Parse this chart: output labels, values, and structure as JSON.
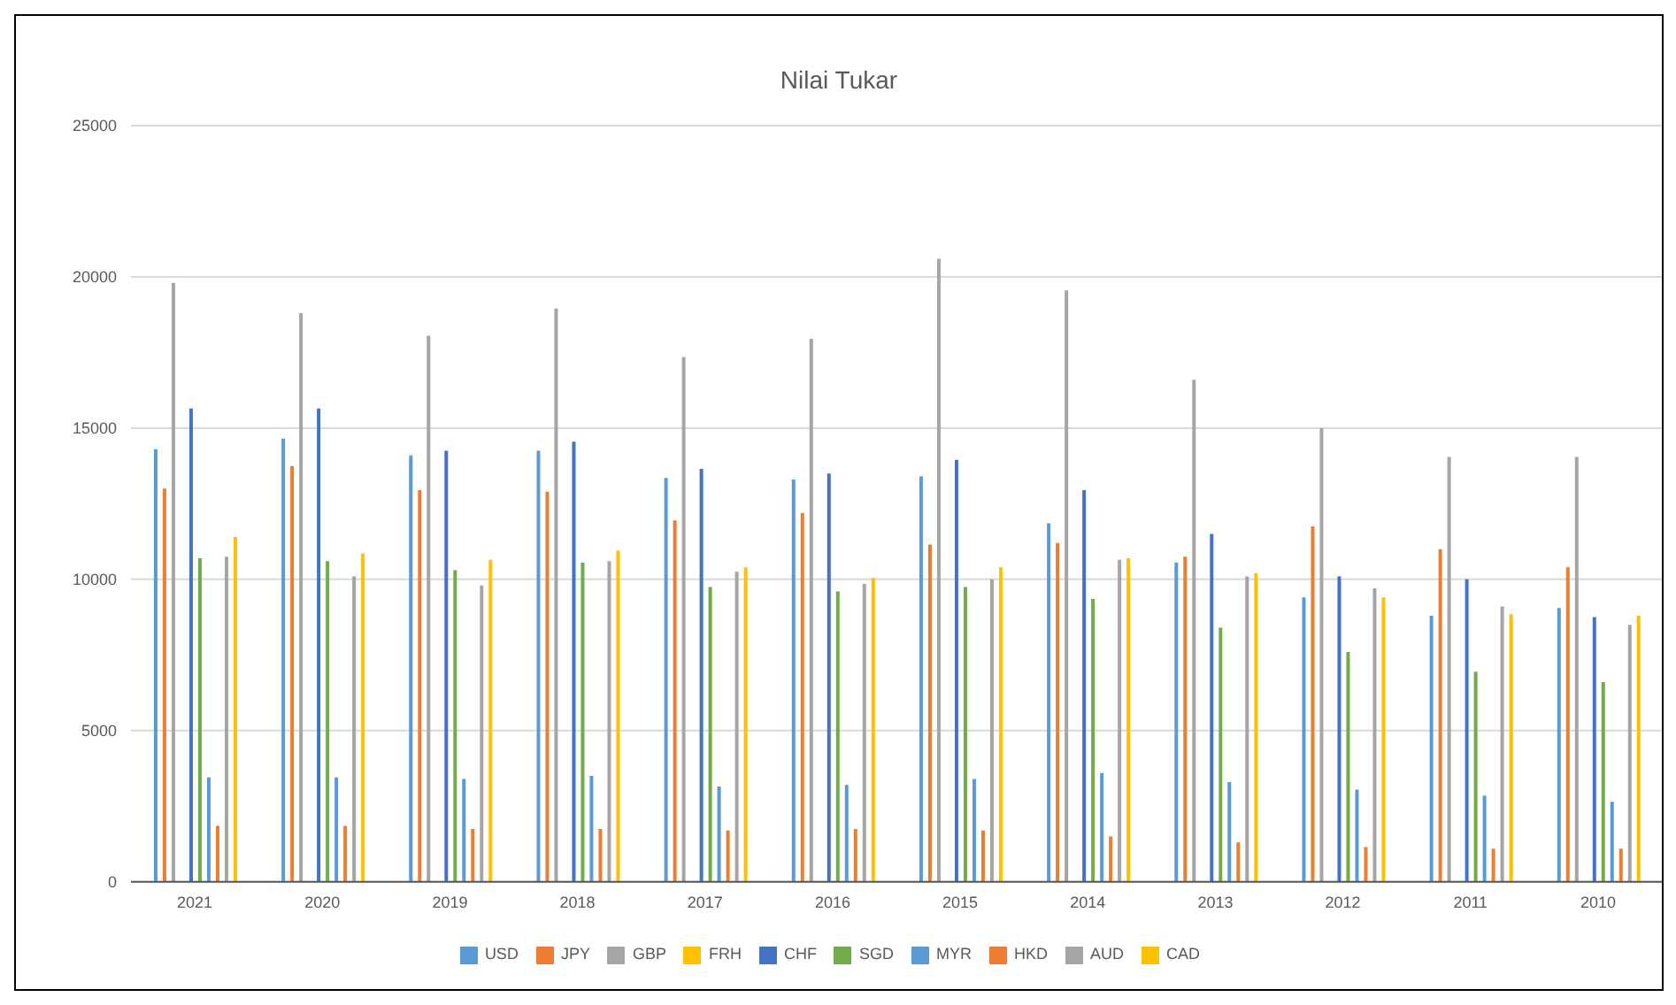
{
  "chart_data": {
    "type": "bar",
    "title": "Nilai Tukar",
    "categories": [
      "2021",
      "2020",
      "2019",
      "2018",
      "2017",
      "2016",
      "2015",
      "2014",
      "2013",
      "2012",
      "2011",
      "2010"
    ],
    "series": [
      {
        "name": "USD",
        "color": "#5b9bd5",
        "values": [
          14300,
          14650,
          14100,
          14250,
          13350,
          13300,
          13400,
          11850,
          10550,
          9400,
          8800,
          9050
        ]
      },
      {
        "name": "JPY",
        "color": "#ed7d31",
        "values": [
          13000,
          13750,
          12950,
          12900,
          11950,
          12200,
          11150,
          11200,
          10750,
          11750,
          11000,
          10400
        ]
      },
      {
        "name": "GBP",
        "color": "#a5a5a5",
        "values": [
          19800,
          18800,
          18050,
          18950,
          17350,
          17950,
          20600,
          19550,
          16600,
          15000,
          14050,
          14050
        ]
      },
      {
        "name": "FRH",
        "color": "#ffc000",
        "values": [
          null,
          null,
          null,
          null,
          null,
          null,
          null,
          null,
          null,
          null,
          null,
          null
        ]
      },
      {
        "name": "CHF",
        "color": "#4472c4",
        "values": [
          15650,
          15650,
          14250,
          14550,
          13650,
          13500,
          13950,
          12950,
          11500,
          10100,
          10000,
          8750
        ]
      },
      {
        "name": "SGD",
        "color": "#70ad47",
        "values": [
          10700,
          10600,
          10300,
          10550,
          9750,
          9600,
          9750,
          9350,
          8400,
          7600,
          6950,
          6600
        ]
      },
      {
        "name": "MYR",
        "color": "#5b9bd5",
        "values": [
          3450,
          3450,
          3400,
          3500,
          3150,
          3200,
          3400,
          3600,
          3300,
          3050,
          2850,
          2650
        ]
      },
      {
        "name": "HKD",
        "color": "#ed7d31",
        "values": [
          1850,
          1850,
          1750,
          1750,
          1700,
          1750,
          1700,
          1500,
          1300,
          1150,
          1100,
          1100
        ]
      },
      {
        "name": "AUD",
        "color": "#a5a5a5",
        "values": [
          10750,
          10100,
          9800,
          10600,
          10250,
          9850,
          10000,
          10650,
          10100,
          9700,
          9100,
          8500
        ]
      },
      {
        "name": "CAD",
        "color": "#ffc000",
        "values": [
          11400,
          10850,
          10650,
          10950,
          10400,
          10050,
          10400,
          10700,
          10200,
          9400,
          8850,
          8800
        ]
      }
    ],
    "ylim": [
      0,
      25000
    ],
    "yticks": [
      0,
      5000,
      10000,
      15000,
      20000,
      25000
    ],
    "grid": "y",
    "legend": "bottom"
  }
}
